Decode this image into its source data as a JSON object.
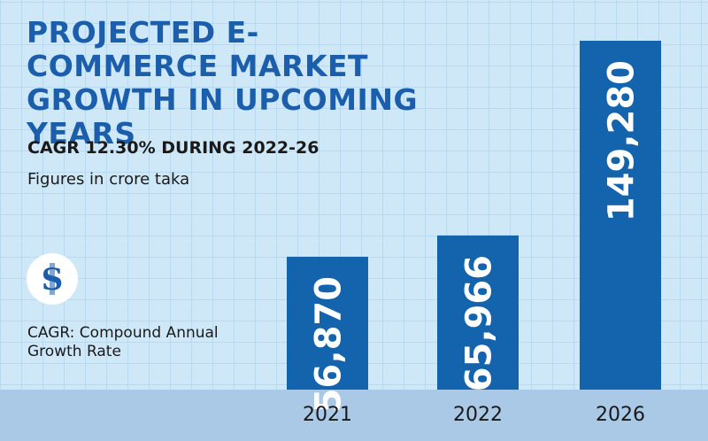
{
  "header": {
    "title": "PROJECTED E-COMMERCE MARKET GROWTH IN UPCOMING YEARS",
    "subtitle": "CAGR 12.30% DURING 2022-26",
    "note": "Figures in crore taka"
  },
  "footer": {
    "footnote": "CAGR: Compound Annual Growth Rate"
  },
  "colors": {
    "bar": "#1463ad",
    "title": "#1b5eab",
    "background": "#cfe8f8",
    "band": "#a9c9e7"
  },
  "chart_data": {
    "type": "bar",
    "categories": [
      "2021",
      "2022",
      "2026"
    ],
    "values": [
      56870,
      65966,
      149280
    ],
    "value_labels": [
      "56,870",
      "65,966",
      "149,280"
    ],
    "title": "PROJECTED E-COMMERCE MARKET GROWTH IN UPCOMING YEARS",
    "subtitle": "CAGR 12.30% DURING 2022-26",
    "xlabel": "",
    "ylabel": "",
    "grid": false,
    "legend": "none"
  }
}
